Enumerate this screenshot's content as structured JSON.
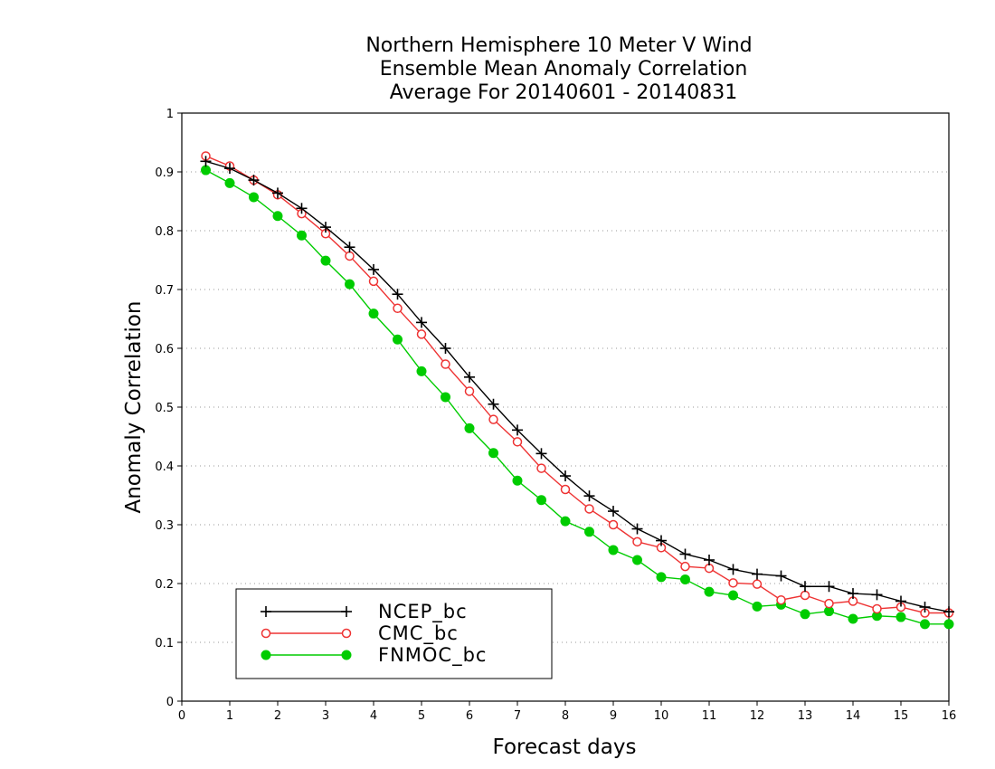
{
  "chart_data": {
    "type": "line",
    "title": [
      "Northern Hemisphere 10 Meter V Wind",
      "Ensemble Mean Anomaly Correlation",
      "Average For 20140601 - 20140831"
    ],
    "xlabel": "Forecast days",
    "ylabel": "Anomaly Correlation",
    "xlim": [
      0,
      16
    ],
    "ylim": [
      0,
      1
    ],
    "xticks": [
      0,
      1,
      2,
      3,
      4,
      5,
      6,
      7,
      8,
      9,
      10,
      11,
      12,
      13,
      14,
      15,
      16
    ],
    "yticks": [
      0,
      0.1,
      0.2,
      0.3,
      0.4,
      0.5,
      0.6,
      0.7,
      0.8,
      0.9,
      1
    ],
    "ytick_labels": [
      "0",
      "0.1",
      "0.2",
      "0.3",
      "0.4",
      "0.5",
      "0.6",
      "0.7",
      "0.8",
      "0.9",
      "1"
    ],
    "grid": "horizontal dotted",
    "legend_position": "bottom-left",
    "x": [
      0.5,
      1,
      1.5,
      2,
      2.5,
      3,
      3.5,
      4,
      4.5,
      5,
      5.5,
      6,
      6.5,
      7,
      7.5,
      8,
      8.5,
      9,
      9.5,
      10,
      10.5,
      11,
      11.5,
      12,
      12.5,
      13,
      13.5,
      14,
      14.5,
      15,
      15.5,
      16
    ],
    "series": [
      {
        "name": "NCEP_bc",
        "color": "#000000",
        "marker": "plus",
        "values": [
          0.918,
          0.906,
          0.886,
          0.864,
          0.838,
          0.806,
          0.772,
          0.734,
          0.692,
          0.644,
          0.6,
          0.551,
          0.505,
          0.461,
          0.421,
          0.383,
          0.349,
          0.323,
          0.293,
          0.273,
          0.25,
          0.24,
          0.224,
          0.216,
          0.213,
          0.195,
          0.195,
          0.183,
          0.181,
          0.17,
          0.16,
          0.152
        ]
      },
      {
        "name": "CMC_bc",
        "color": "#ee3333",
        "marker": "open-circle",
        "values": [
          0.927,
          0.91,
          0.886,
          0.861,
          0.829,
          0.795,
          0.757,
          0.714,
          0.668,
          0.624,
          0.573,
          0.527,
          0.479,
          0.441,
          0.396,
          0.36,
          0.327,
          0.3,
          0.271,
          0.261,
          0.229,
          0.226,
          0.201,
          0.199,
          0.172,
          0.18,
          0.166,
          0.17,
          0.157,
          0.16,
          0.15,
          0.15
        ]
      },
      {
        "name": "FNMOC_bc",
        "color": "#00cc00",
        "marker": "filled-circle",
        "values": [
          0.903,
          0.881,
          0.857,
          0.825,
          0.792,
          0.749,
          0.709,
          0.659,
          0.615,
          0.561,
          0.517,
          0.464,
          0.422,
          0.375,
          0.342,
          0.306,
          0.288,
          0.257,
          0.24,
          0.211,
          0.207,
          0.186,
          0.18,
          0.161,
          0.164,
          0.148,
          0.153,
          0.14,
          0.145,
          0.143,
          0.131,
          0.131
        ]
      }
    ]
  }
}
